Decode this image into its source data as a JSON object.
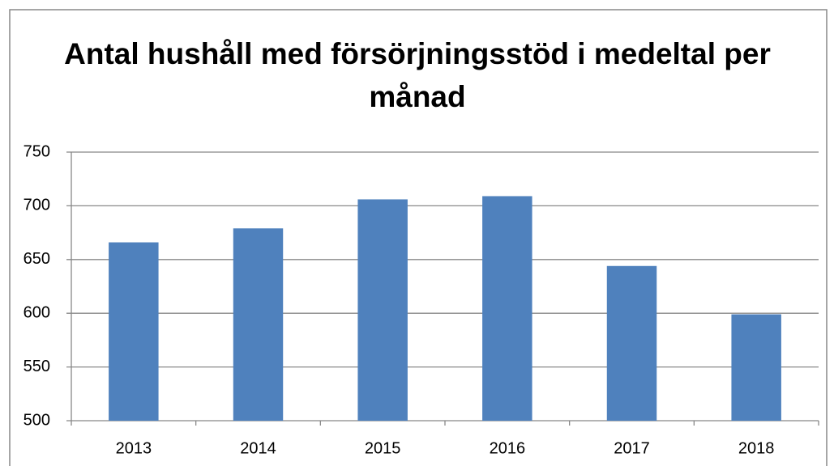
{
  "chart_data": {
    "type": "bar",
    "title": "Antal hushåll med försörjningsstöd i medeltal per månad",
    "categories": [
      "2013",
      "2014",
      "2015",
      "2016",
      "2017",
      "2018"
    ],
    "values": [
      666,
      679,
      706,
      709,
      644,
      599
    ],
    "color": "#4f81bd",
    "ylim": [
      500,
      750
    ],
    "yticks": [
      500,
      550,
      600,
      650,
      700,
      750
    ],
    "grid": true
  }
}
